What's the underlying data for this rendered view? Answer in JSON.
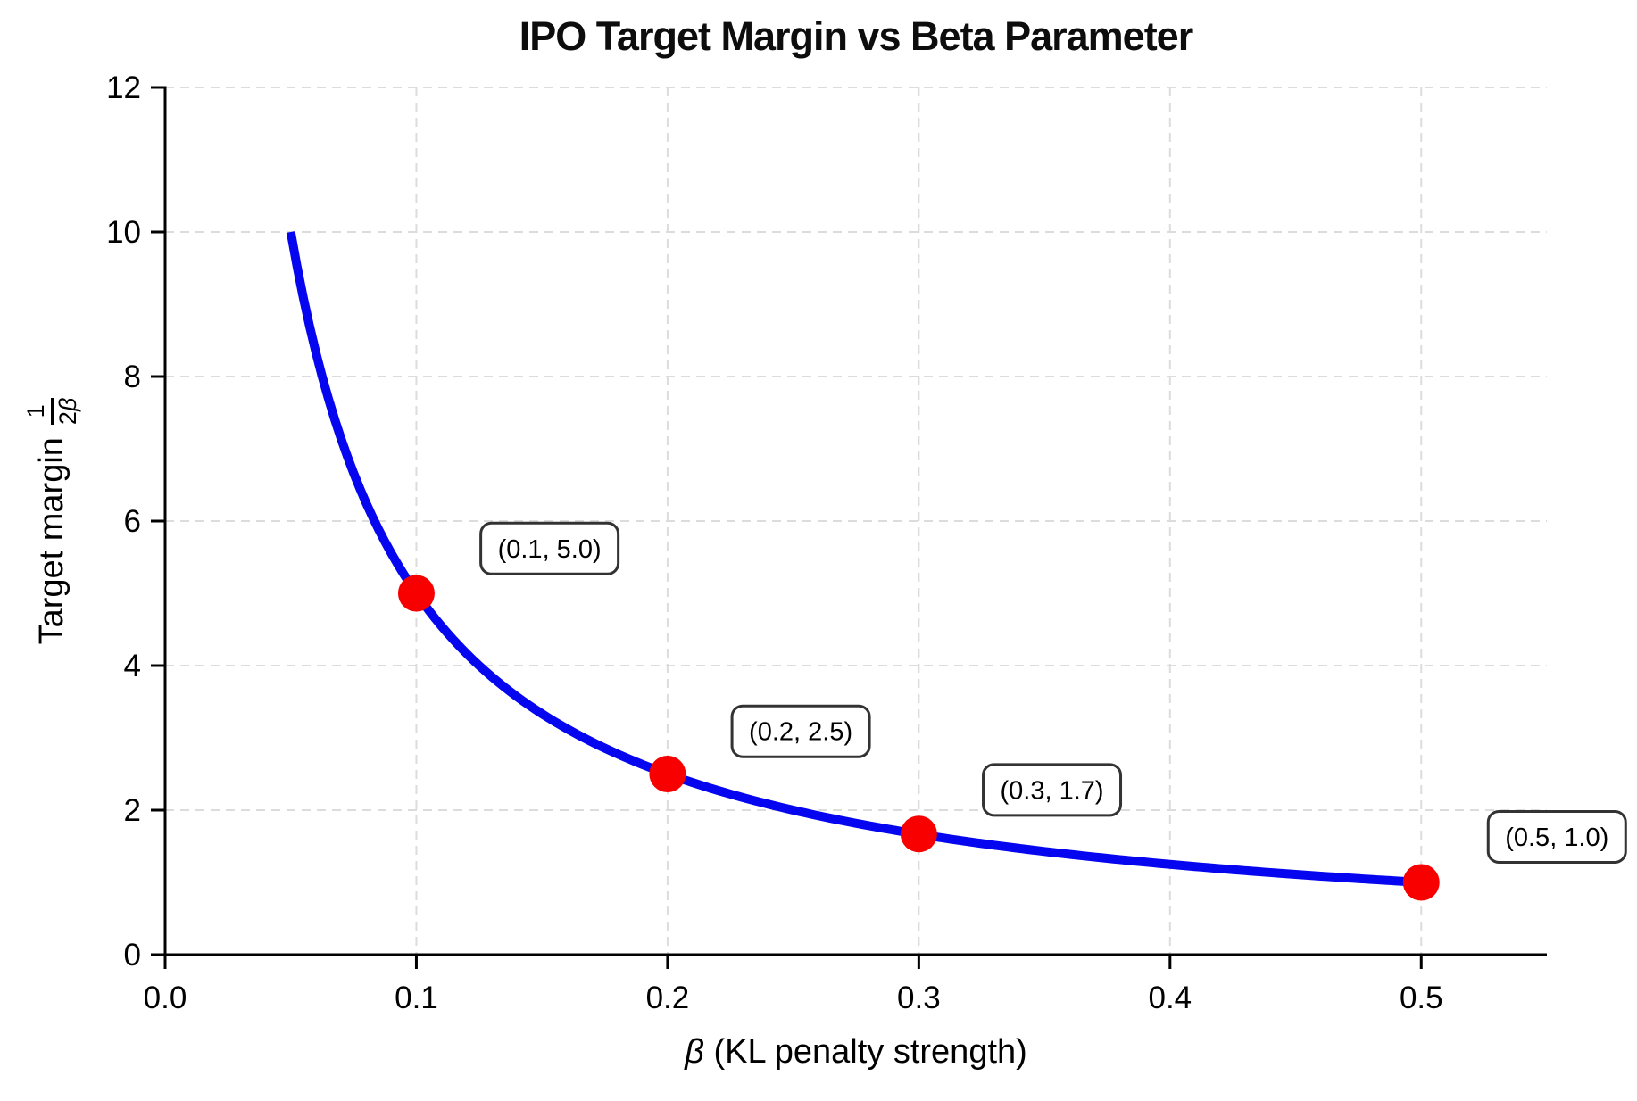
{
  "chart_data": {
    "type": "line",
    "title": "IPO Target Margin vs Beta Parameter",
    "xlabel": "β (KL penalty strength)",
    "ylabel": "Target margin 1/(2β)",
    "ylabel_parts": {
      "text": "Target margin",
      "frac_numerator": "1",
      "frac_den_coeff": "2",
      "frac_den_symbol": "β"
    },
    "xlim": [
      0,
      0.55
    ],
    "ylim": [
      0,
      12
    ],
    "xticks": {
      "values": [
        0.0,
        0.1,
        0.2,
        0.3,
        0.4,
        0.5
      ],
      "labels": [
        "0.0",
        "0.1",
        "0.2",
        "0.3",
        "0.4",
        "0.5"
      ]
    },
    "yticks": {
      "values": [
        0,
        2,
        4,
        6,
        8,
        10,
        12
      ],
      "labels": [
        "0",
        "2",
        "4",
        "6",
        "8",
        "10",
        "12"
      ]
    },
    "grid": true,
    "grid_style": "dashed",
    "legend": "none",
    "curve": {
      "name": "target margin = 1/(2β)",
      "formula": "1/(2*beta)",
      "x_start": 0.05,
      "x_end": 0.5
    },
    "points": [
      {
        "x": 0.1,
        "y": 5.0,
        "label": "(0.1, 5.0)",
        "label_x": 0.153,
        "label_y": 5.62
      },
      {
        "x": 0.2,
        "y": 2.5,
        "label": "(0.2, 2.5)",
        "label_x": 0.253,
        "label_y": 3.09
      },
      {
        "x": 0.3,
        "y": 1.67,
        "label": "(0.3, 1.7)",
        "label_x": 0.353,
        "label_y": 2.28
      },
      {
        "x": 0.5,
        "y": 1.0,
        "label": "(0.5, 1.0)",
        "label_x": 0.554,
        "label_y": 1.63
      }
    ],
    "colors": {
      "line": "#0505f0",
      "marker": "#f80000",
      "grid": "#dcdcdc",
      "spine": "#000000",
      "tick": "#000000",
      "annotation_border": "#333333",
      "annotation_bg": "#ffffff",
      "text": "#000000"
    }
  }
}
